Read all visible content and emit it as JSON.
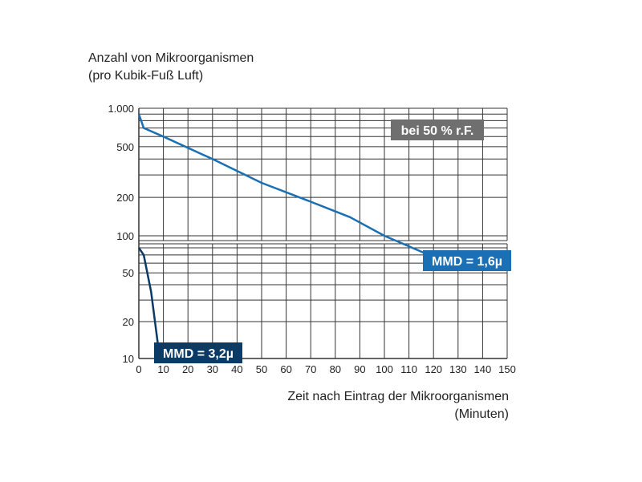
{
  "chart_data": {
    "type": "line",
    "ylabel_line1": "Anzahl von Mikroorganismen",
    "ylabel_line2": "(pro Kubik-Fuß Luft)",
    "xlabel_line1": "Zeit nach Eintrag der Mikroorganismen",
    "xlabel_line2": "(Minuten)",
    "xlim": [
      0,
      150
    ],
    "x_ticks": [
      "0",
      "10",
      "20",
      "30",
      "40",
      "50",
      "60",
      "70",
      "80",
      "90",
      "100",
      "110",
      "120",
      "130",
      "140",
      "150"
    ],
    "y_scale": "log",
    "y_ticks": [
      "1.000",
      "500",
      "200",
      "100",
      "50",
      "20",
      "10"
    ],
    "y_tick_values": [
      1000,
      500,
      200,
      100,
      50,
      20,
      10
    ],
    "grid": true,
    "condition_label": "bei 50 % r.F.",
    "series": [
      {
        "name": "MMD = 1,6µ",
        "color": "#1a6fb5",
        "points": [
          [
            0,
            900
          ],
          [
            2,
            700
          ],
          [
            10,
            600
          ],
          [
            30,
            400
          ],
          [
            50,
            260
          ],
          [
            70,
            185
          ],
          [
            86,
            140
          ],
          [
            100,
            100
          ],
          [
            116,
            73
          ]
        ]
      },
      {
        "name": "MMD = 3,2µ",
        "color": "#0b3a64",
        "points": [
          [
            0,
            80
          ],
          [
            2,
            70
          ],
          [
            5,
            35
          ],
          [
            8,
            12
          ],
          [
            9,
            10
          ]
        ]
      }
    ]
  }
}
